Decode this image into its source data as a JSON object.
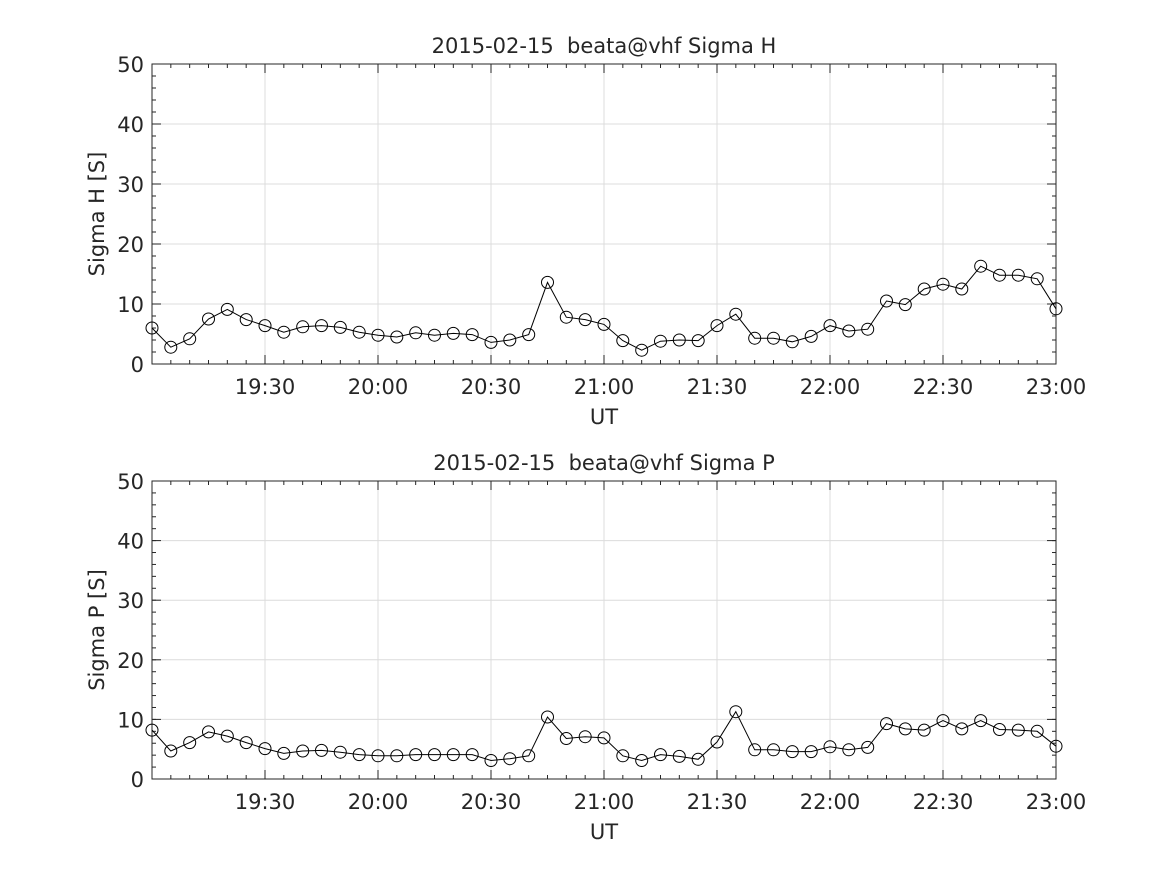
{
  "chart_data": [
    {
      "type": "line",
      "title": "2015-02-15  beata@vhf Sigma H",
      "xlabel": "UT",
      "ylabel": "Sigma H [S]",
      "xlim": [
        "19:00",
        "23:00"
      ],
      "ylim": [
        0,
        50
      ],
      "x_ticks": [
        "19:30",
        "20:00",
        "20:30",
        "21:00",
        "21:30",
        "22:00",
        "22:30",
        "23:00"
      ],
      "y_ticks": [
        "0",
        "10",
        "20",
        "30",
        "40",
        "50"
      ],
      "grid": true,
      "marker": "open-circle",
      "x": [
        "19:00",
        "19:05",
        "19:10",
        "19:15",
        "19:20",
        "19:25",
        "19:30",
        "19:35",
        "19:40",
        "19:45",
        "19:50",
        "19:55",
        "20:00",
        "20:05",
        "20:10",
        "20:15",
        "20:20",
        "20:25",
        "20:30",
        "20:35",
        "20:40",
        "20:45",
        "20:50",
        "20:55",
        "21:00",
        "21:05",
        "21:10",
        "21:15",
        "21:20",
        "21:25",
        "21:30",
        "21:35",
        "21:40",
        "21:45",
        "21:50",
        "21:55",
        "22:00",
        "22:05",
        "22:10",
        "22:15",
        "22:20",
        "22:25",
        "22:30",
        "22:35",
        "22:40",
        "22:45",
        "22:50",
        "22:55",
        "23:00"
      ],
      "values": [
        6.0,
        2.8,
        4.2,
        7.5,
        9.1,
        7.4,
        6.4,
        5.3,
        6.2,
        6.4,
        6.1,
        5.3,
        4.8,
        4.5,
        5.2,
        4.8,
        5.1,
        4.9,
        3.6,
        4.0,
        4.9,
        13.6,
        7.8,
        7.4,
        6.6,
        3.9,
        2.3,
        3.8,
        4.0,
        3.9,
        6.4,
        8.3,
        4.3,
        4.3,
        3.7,
        4.6,
        6.4,
        5.5,
        5.8,
        10.5,
        9.9,
        12.5,
        13.3,
        12.5,
        16.3,
        14.8,
        14.8,
        14.2,
        9.2
      ]
    },
    {
      "type": "line",
      "title": "2015-02-15  beata@vhf Sigma P",
      "xlabel": "UT",
      "ylabel": "Sigma P [S]",
      "xlim": [
        "19:00",
        "23:00"
      ],
      "ylim": [
        0,
        50
      ],
      "x_ticks": [
        "19:30",
        "20:00",
        "20:30",
        "21:00",
        "21:30",
        "22:00",
        "22:30",
        "23:00"
      ],
      "y_ticks": [
        "0",
        "10",
        "20",
        "30",
        "40",
        "50"
      ],
      "grid": true,
      "marker": "open-circle",
      "x": [
        "19:00",
        "19:05",
        "19:10",
        "19:15",
        "19:20",
        "19:25",
        "19:30",
        "19:35",
        "19:40",
        "19:45",
        "19:50",
        "19:55",
        "20:00",
        "20:05",
        "20:10",
        "20:15",
        "20:20",
        "20:25",
        "20:30",
        "20:35",
        "20:40",
        "20:45",
        "20:50",
        "20:55",
        "21:00",
        "21:05",
        "21:10",
        "21:15",
        "21:20",
        "21:25",
        "21:30",
        "21:35",
        "21:40",
        "21:45",
        "21:50",
        "21:55",
        "22:00",
        "22:05",
        "22:10",
        "22:15",
        "22:20",
        "22:25",
        "22:30",
        "22:35",
        "22:40",
        "22:45",
        "22:50",
        "22:55",
        "23:00"
      ],
      "values": [
        8.2,
        4.7,
        6.1,
        7.9,
        7.2,
        6.1,
        5.1,
        4.3,
        4.7,
        4.8,
        4.5,
        4.1,
        3.9,
        3.9,
        4.1,
        4.1,
        4.1,
        4.1,
        3.1,
        3.4,
        3.9,
        10.4,
        6.8,
        7.1,
        6.9,
        3.9,
        3.1,
        4.1,
        3.8,
        3.3,
        6.2,
        11.3,
        4.9,
        4.9,
        4.6,
        4.6,
        5.4,
        4.9,
        5.3,
        9.3,
        8.4,
        8.2,
        9.8,
        8.4,
        9.8,
        8.3,
        8.2,
        8.0,
        5.5
      ]
    }
  ]
}
